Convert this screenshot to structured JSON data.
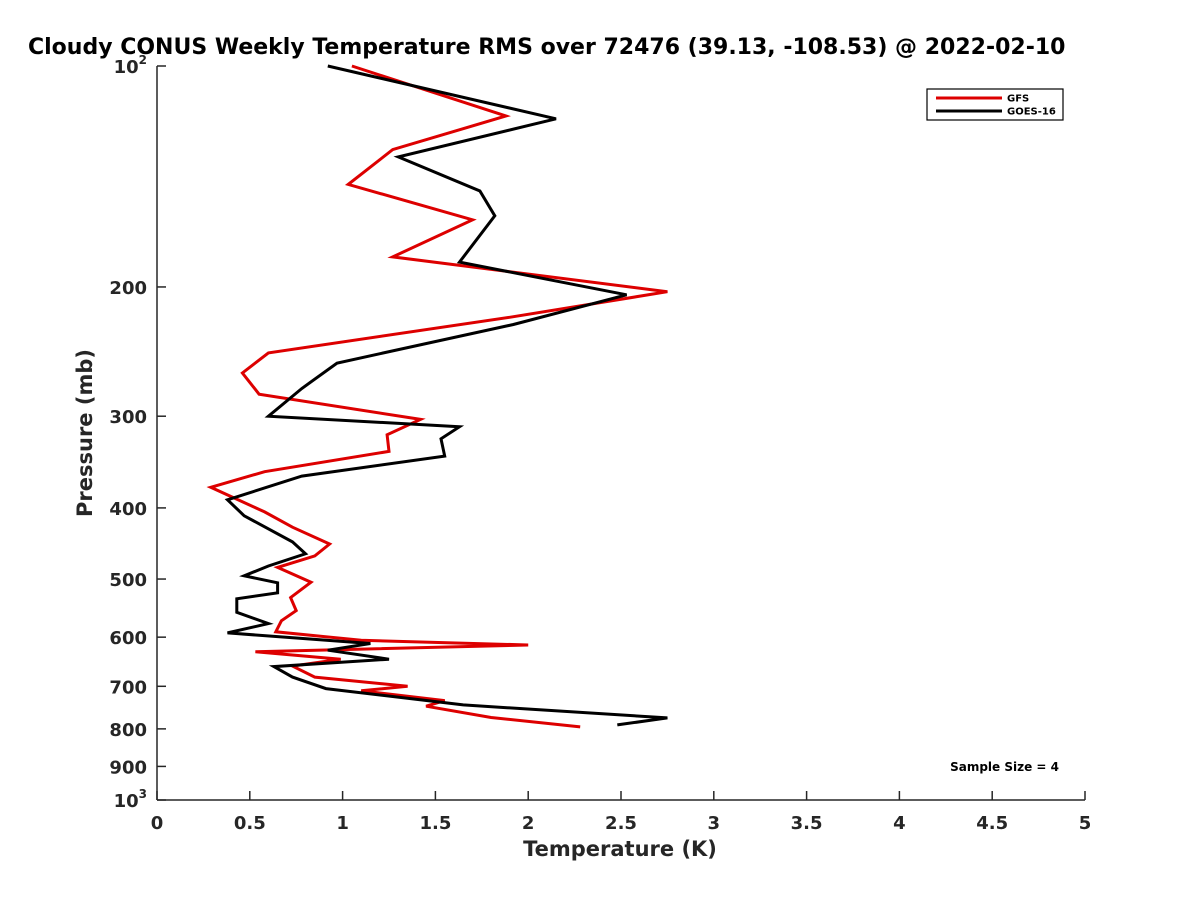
{
  "chart_data": {
    "type": "line",
    "title": "Cloudy CONUS Weekly Temperature RMS over 72476 (39.13, -108.53) @ 2022-02-10",
    "xlabel": "Temperature (K)",
    "ylabel": "Pressure (mb)",
    "xlim": [
      0,
      5
    ],
    "ylim": [
      100,
      1000
    ],
    "yscale": "log",
    "y_reversed": true,
    "grid": false,
    "legend_position": "top-right",
    "x_ticks": [
      0,
      0.5,
      1,
      1.5,
      2,
      2.5,
      3,
      3.5,
      4,
      4.5,
      5
    ],
    "x_tick_labels": [
      "0",
      "0.5",
      "1",
      "1.5",
      "2",
      "2.5",
      "3",
      "3.5",
      "4",
      "4.5",
      "5"
    ],
    "y_ticks": [
      {
        "value": 100,
        "label": "10",
        "sup": "2"
      },
      {
        "value": 200,
        "label": "200",
        "sup": ""
      },
      {
        "value": 300,
        "label": "300",
        "sup": ""
      },
      {
        "value": 400,
        "label": "400",
        "sup": ""
      },
      {
        "value": 500,
        "label": "500",
        "sup": ""
      },
      {
        "value": 600,
        "label": "600",
        "sup": ""
      },
      {
        "value": 700,
        "label": "700",
        "sup": ""
      },
      {
        "value": 800,
        "label": "800",
        "sup": ""
      },
      {
        "value": 900,
        "label": "900",
        "sup": ""
      },
      {
        "value": 1000,
        "label": "10",
        "sup": "3"
      }
    ],
    "annotation": "Sample Size = 4",
    "series": [
      {
        "name": "GFS",
        "color": "#dd0000",
        "points": [
          [
            1.05,
            100
          ],
          [
            1.88,
            117
          ],
          [
            1.27,
            130
          ],
          [
            1.03,
            145
          ],
          [
            1.7,
            162
          ],
          [
            1.27,
            182
          ],
          [
            2.75,
            203
          ],
          [
            1.9,
            220
          ],
          [
            0.6,
            246
          ],
          [
            0.46,
            262
          ],
          [
            0.55,
            280
          ],
          [
            1.42,
            303
          ],
          [
            1.24,
            318
          ],
          [
            1.25,
            335
          ],
          [
            0.58,
            357
          ],
          [
            0.29,
            375
          ],
          [
            0.58,
            405
          ],
          [
            0.73,
            425
          ],
          [
            0.93,
            448
          ],
          [
            0.85,
            465
          ],
          [
            0.65,
            482
          ],
          [
            0.83,
            505
          ],
          [
            0.72,
            530
          ],
          [
            0.75,
            552
          ],
          [
            0.67,
            570
          ],
          [
            0.64,
            590
          ],
          [
            1.1,
            606
          ],
          [
            2.0,
            615
          ],
          [
            0.53,
            628
          ],
          [
            0.99,
            643
          ],
          [
            0.73,
            657
          ],
          [
            0.85,
            680
          ],
          [
            1.35,
            700
          ],
          [
            1.1,
            710
          ],
          [
            1.55,
            732
          ],
          [
            1.45,
            745
          ],
          [
            1.8,
            772
          ],
          [
            2.28,
            795
          ]
        ]
      },
      {
        "name": "GOES-16",
        "color": "#000000",
        "points": [
          [
            0.92,
            100
          ],
          [
            2.15,
            118
          ],
          [
            1.3,
            133
          ],
          [
            1.74,
            148
          ],
          [
            1.82,
            160
          ],
          [
            1.63,
            185
          ],
          [
            2.53,
            205
          ],
          [
            1.92,
            225
          ],
          [
            0.97,
            254
          ],
          [
            0.78,
            275
          ],
          [
            0.6,
            300
          ],
          [
            1.63,
            310
          ],
          [
            1.53,
            322
          ],
          [
            1.55,
            340
          ],
          [
            0.78,
            362
          ],
          [
            0.38,
            390
          ],
          [
            0.47,
            410
          ],
          [
            0.73,
            445
          ],
          [
            0.8,
            462
          ],
          [
            0.6,
            480
          ],
          [
            0.47,
            495
          ],
          [
            0.65,
            506
          ],
          [
            0.65,
            522
          ],
          [
            0.43,
            532
          ],
          [
            0.43,
            555
          ],
          [
            0.6,
            575
          ],
          [
            0.38,
            592
          ],
          [
            1.15,
            612
          ],
          [
            0.92,
            625
          ],
          [
            1.25,
            643
          ],
          [
            0.63,
            658
          ],
          [
            0.73,
            680
          ],
          [
            0.91,
            705
          ],
          [
            1.65,
            742
          ],
          [
            2.75,
            773
          ],
          [
            2.48,
            790
          ]
        ]
      }
    ]
  }
}
